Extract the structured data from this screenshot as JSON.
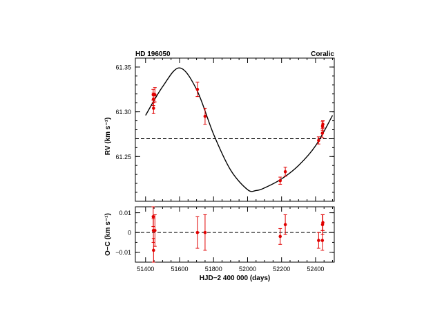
{
  "chart_data": [
    {
      "type": "scatter",
      "title_left": "HD 196050",
      "title_right": "Coralic",
      "ylabel": "RV (km s⁻¹)",
      "xlim": [
        51340,
        52510
      ],
      "ylim": [
        61.2,
        61.36
      ],
      "y_ticks": [
        61.25,
        61.3,
        61.35
      ],
      "y_tick_labels": [
        "61.25",
        "61.30",
        "61.35"
      ],
      "systemic_velocity": 61.27,
      "color": "#e00000",
      "points": [
        {
          "x": 51445,
          "y": 61.319,
          "err": 0.006
        },
        {
          "x": 51446,
          "y": 61.314,
          "err": 0.007
        },
        {
          "x": 51447,
          "y": 61.304,
          "err": 0.006
        },
        {
          "x": 51455,
          "y": 61.319,
          "err": 0.008
        },
        {
          "x": 51705,
          "y": 61.325,
          "err": 0.008
        },
        {
          "x": 51750,
          "y": 61.295,
          "err": 0.009
        },
        {
          "x": 52192,
          "y": 61.223,
          "err": 0.004
        },
        {
          "x": 52222,
          "y": 61.233,
          "err": 0.005
        },
        {
          "x": 52418,
          "y": 61.268,
          "err": 0.004
        },
        {
          "x": 52440,
          "y": 61.276,
          "err": 0.005
        },
        {
          "x": 52441,
          "y": 61.284,
          "err": 0.005
        },
        {
          "x": 52443,
          "y": 61.286,
          "err": 0.004
        }
      ],
      "model_curve": {
        "x": [
          51400,
          51500,
          51600,
          51700,
          51800,
          51900,
          52000,
          52050,
          52100,
          52200,
          52300,
          52400,
          52500
        ],
        "y": [
          61.296,
          61.328,
          61.349,
          61.325,
          61.275,
          61.235,
          61.213,
          61.212,
          61.215,
          61.225,
          61.24,
          61.262,
          61.296
        ]
      }
    },
    {
      "type": "scatter",
      "xlabel": "HJD−2 400 000 (days)",
      "ylabel": "O−C (km s⁻¹)",
      "xlim": [
        51340,
        52510
      ],
      "ylim": [
        -0.015,
        0.013
      ],
      "x_ticks": [
        51400,
        51600,
        51800,
        52000,
        52200,
        52400
      ],
      "x_tick_labels": [
        "51400",
        "51600",
        "51800",
        "52000",
        "52200",
        "52400"
      ],
      "y_ticks": [
        -0.01,
        0,
        0.01
      ],
      "y_tick_labels": [
        "−0.01",
        "0",
        "0.01"
      ],
      "color": "#e00000",
      "points": [
        {
          "x": 51445,
          "y": 0.008,
          "err": 0.005
        },
        {
          "x": 51446,
          "y": 0.001,
          "err": 0.006
        },
        {
          "x": 51447,
          "y": -0.009,
          "err": 0.006
        },
        {
          "x": 51455,
          "y": 0.001,
          "err": 0.008
        },
        {
          "x": 51705,
          "y": 0.0,
          "err": 0.008
        },
        {
          "x": 51750,
          "y": 0.0,
          "err": 0.009
        },
        {
          "x": 52192,
          "y": -0.002,
          "err": 0.004
        },
        {
          "x": 52222,
          "y": 0.004,
          "err": 0.005
        },
        {
          "x": 52418,
          "y": -0.004,
          "err": 0.004
        },
        {
          "x": 52440,
          "y": -0.004,
          "err": 0.005
        },
        {
          "x": 52441,
          "y": 0.004,
          "err": 0.005
        },
        {
          "x": 52443,
          "y": 0.005,
          "err": 0.004
        }
      ]
    }
  ]
}
